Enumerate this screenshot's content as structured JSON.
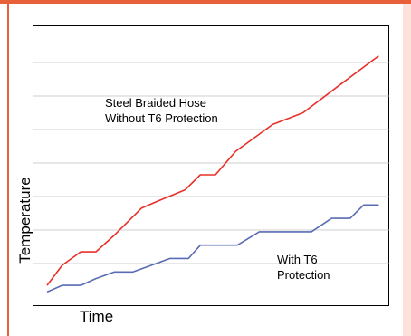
{
  "colors": {
    "frame": "#e8603a",
    "frame_shadow": "#f4c6b8",
    "grid": "#bfbfbf"
  },
  "chart_data": {
    "type": "line",
    "xlabel": "Time",
    "ylabel": "Temperature",
    "xlim": [
      0,
      10
    ],
    "ylim": [
      0,
      8
    ],
    "y_gridlines": [
      1,
      2,
      3,
      4,
      5,
      6,
      7
    ],
    "grid": true,
    "legend": "none",
    "series": [
      {
        "name": "",
        "color": "#e8302a",
        "x": [
          0,
          0.45,
          1.0,
          1.45,
          2.0,
          2.8,
          3.25,
          4.1,
          4.55,
          5.0,
          5.6,
          6.7,
          7.6,
          8.85,
          9.85
        ],
        "y": [
          0.35,
          0.95,
          1.35,
          1.35,
          1.85,
          2.65,
          2.85,
          3.2,
          3.65,
          3.65,
          4.35,
          5.15,
          5.5,
          6.45,
          7.2
        ]
      },
      {
        "name": "",
        "color": "#5a6bb5",
        "x": [
          0,
          0.45,
          1.0,
          1.45,
          2.0,
          2.55,
          3.1,
          3.65,
          4.2,
          4.55,
          5.0,
          5.65,
          6.3,
          6.85,
          7.85,
          8.45,
          9.0,
          9.4,
          9.85
        ],
        "y": [
          0.15,
          0.35,
          0.35,
          0.55,
          0.75,
          0.75,
          0.95,
          1.15,
          1.15,
          1.55,
          1.55,
          1.55,
          1.95,
          1.95,
          1.95,
          2.35,
          2.35,
          2.75,
          2.75
        ]
      }
    ],
    "annotations": [
      {
        "target": "red-series",
        "lines": [
          "Steel Braided Hose",
          "Without T6 Protection"
        ]
      },
      {
        "target": "blue-series",
        "lines": [
          "With T6",
          "Protection"
        ]
      }
    ]
  }
}
